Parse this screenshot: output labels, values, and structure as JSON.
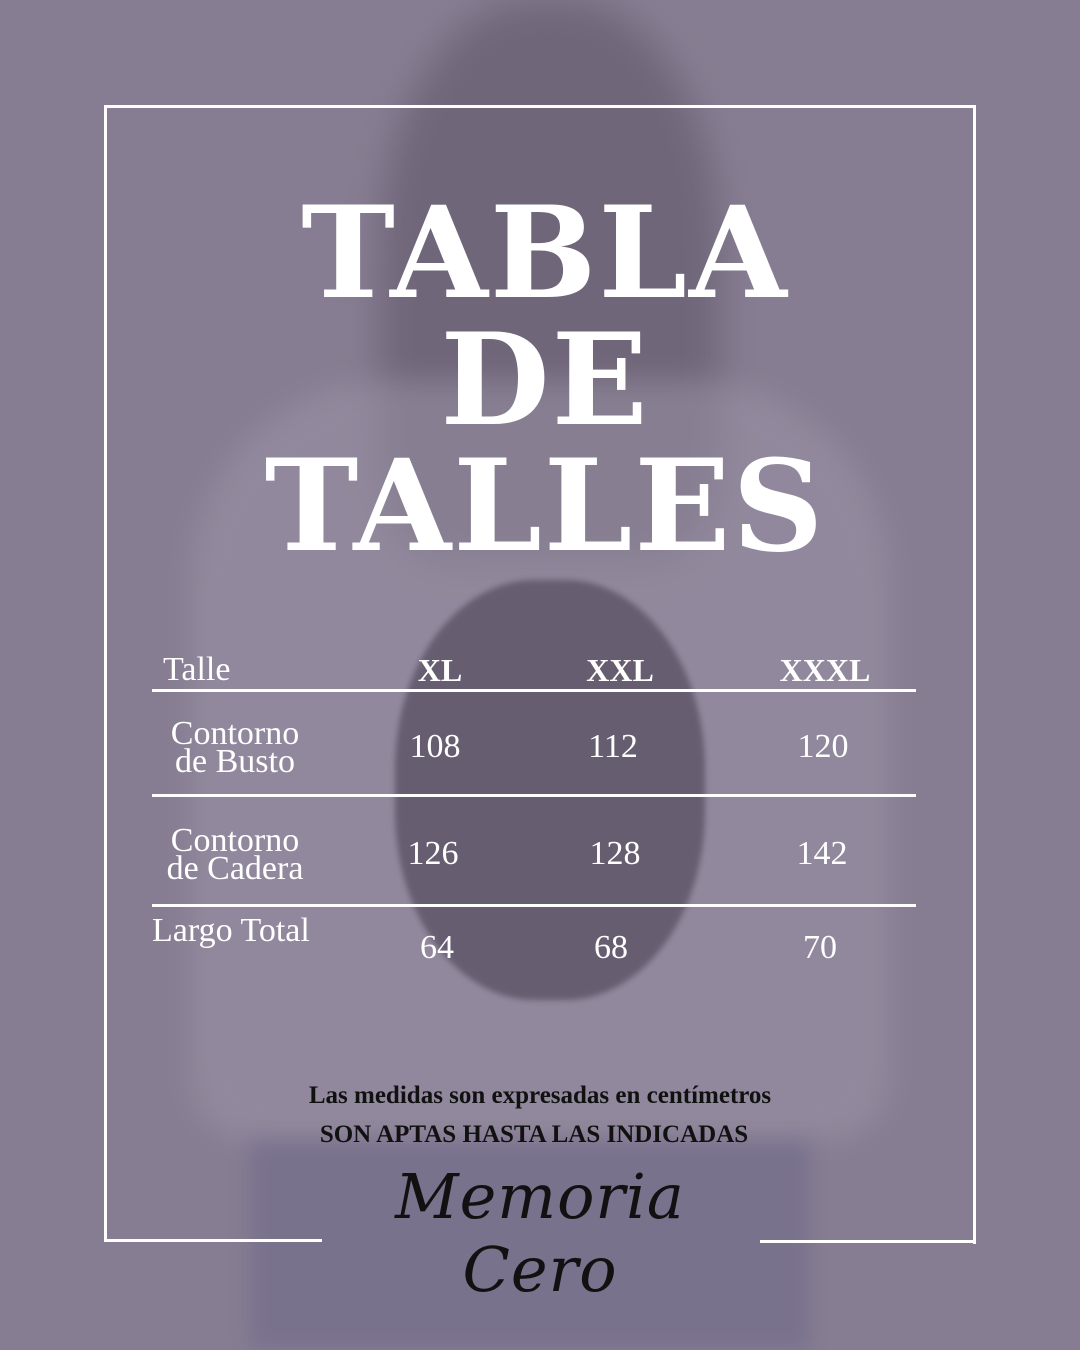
{
  "colors": {
    "background": "#877d92",
    "frame": "#ffffff",
    "title": "#ffffff",
    "note": "#111111"
  },
  "title": {
    "line1": "TABLA",
    "line2": "DE",
    "line3": "TALLES"
  },
  "table": {
    "header": [
      "Talle",
      "XL",
      "XXL",
      "XXXL"
    ],
    "rows": [
      {
        "label_line1": "Contorno",
        "label_line2": "de Busto",
        "values": [
          "108",
          "112",
          "120"
        ]
      },
      {
        "label_line1": "Contorno",
        "label_line2": "de Cadera",
        "values": [
          "126",
          "128",
          "142"
        ]
      },
      {
        "label_line1": "Largo Total",
        "label_line2": "",
        "values": [
          "64",
          "68",
          "70"
        ]
      }
    ]
  },
  "notes": {
    "line1": "Las medidas son expresadas en centímetros",
    "line2": "SON APTAS HASTA LAS INDICADAS"
  },
  "brand": {
    "logo_text": "Memoria Cero"
  }
}
